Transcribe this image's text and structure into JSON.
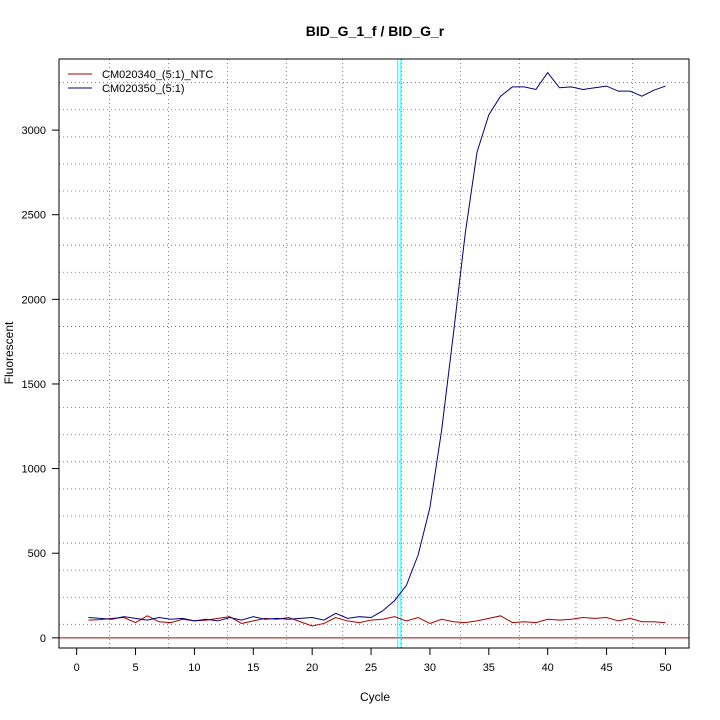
{
  "chart_data": {
    "type": "line",
    "title": "BID_G_1_f / BID_G_r",
    "xlabel": "Cycle",
    "ylabel": "Fluorescent",
    "xlim": [
      -1.5,
      52
    ],
    "ylim": [
      -60,
      3420
    ],
    "x_ticks": [
      0,
      5,
      10,
      15,
      20,
      25,
      30,
      35,
      40,
      45,
      50
    ],
    "y_ticks": [
      0,
      500,
      1000,
      1500,
      2000,
      2500,
      3000
    ],
    "grid": true,
    "grid_style": "dotted",
    "x_grid": [
      2.8,
      7.8,
      12.8,
      17.8,
      22.6,
      27.6,
      32.6,
      37.6,
      42.4,
      47.2
    ],
    "y_grid": [
      80,
      240,
      400,
      560,
      720,
      880,
      1040,
      1200,
      1360,
      1520,
      1680,
      1840,
      2000,
      2160,
      2320,
      2480,
      2640,
      2800,
      2960,
      3120,
      3280
    ],
    "legend_position": "top-left",
    "threshold": {
      "x": 27.4,
      "color": "#00ffff"
    },
    "baseline": {
      "y": 0,
      "color": "#aa0000"
    },
    "x": [
      1,
      2,
      3,
      4,
      5,
      6,
      7,
      8,
      9,
      10,
      11,
      12,
      13,
      14,
      15,
      16,
      17,
      18,
      19,
      20,
      21,
      22,
      23,
      24,
      25,
      26,
      27,
      28,
      29,
      30,
      31,
      32,
      33,
      34,
      35,
      36,
      37,
      38,
      39,
      40,
      41,
      42,
      43,
      44,
      45,
      46,
      47,
      48,
      49,
      50
    ],
    "series": [
      {
        "name": "CM020340_(5:1)_NTC",
        "color": "#aa0000",
        "values": [
          105,
          108,
          115,
          120,
          90,
          130,
          95,
          90,
          110,
          100,
          105,
          115,
          125,
          85,
          100,
          115,
          110,
          120,
          95,
          70,
          85,
          120,
          100,
          90,
          105,
          110,
          125,
          100,
          120,
          85,
          110,
          95,
          90,
          100,
          115,
          130,
          90,
          95,
          90,
          110,
          105,
          110,
          120,
          115,
          120,
          100,
          115,
          95,
          95,
          90
        ]
      },
      {
        "name": "CM020350_(5:1)",
        "color": "#000080",
        "values": [
          120,
          115,
          110,
          125,
          115,
          105,
          120,
          110,
          115,
          100,
          110,
          100,
          120,
          105,
          125,
          110,
          115,
          110,
          115,
          120,
          105,
          145,
          115,
          125,
          120,
          160,
          220,
          310,
          490,
          770,
          1230,
          1800,
          2390,
          2870,
          3090,
          3200,
          3255,
          3255,
          3240,
          3340,
          3250,
          3255,
          3240,
          3250,
          3260,
          3230,
          3230,
          3200,
          3235,
          3260
        ]
      }
    ]
  }
}
